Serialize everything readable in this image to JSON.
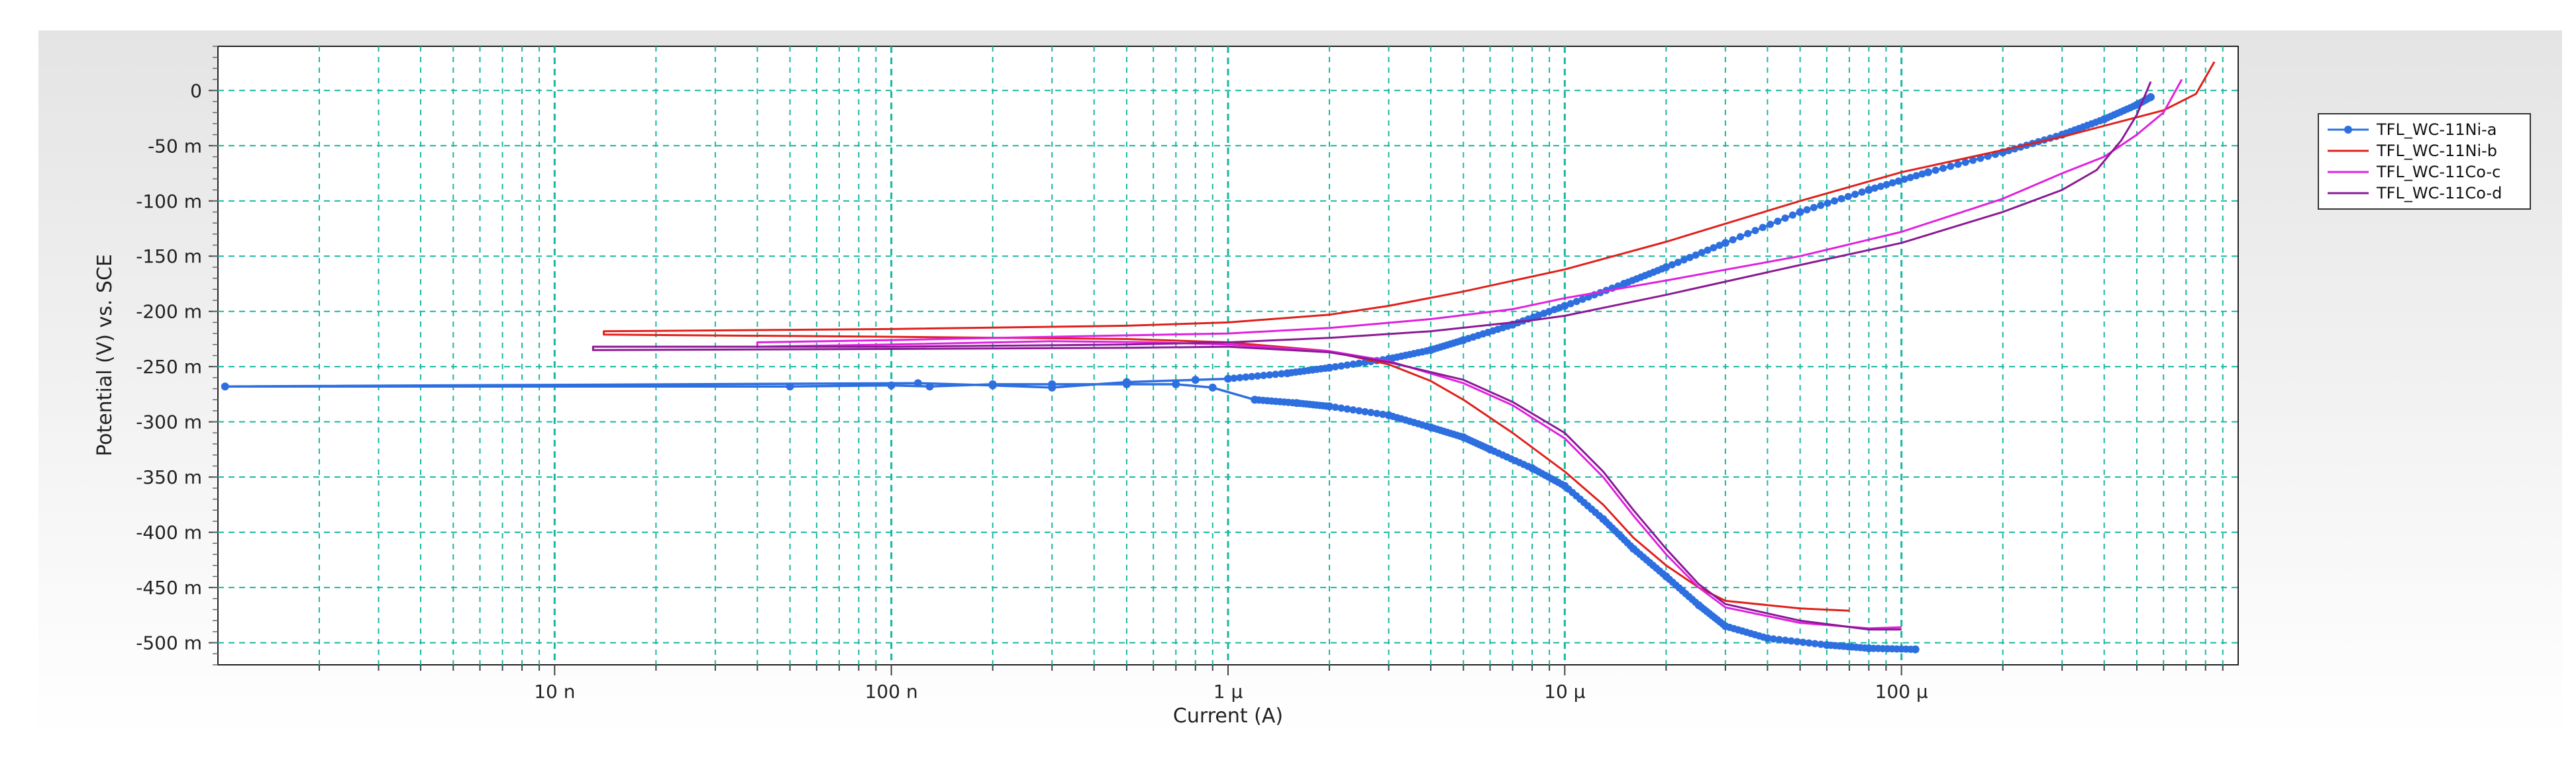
{
  "chart_data": {
    "type": "line",
    "xlabel": "Current (A)",
    "ylabel": "Potential (V) vs. SCE",
    "x_scale": "log",
    "xlim": [
      1e-09,
      0.001
    ],
    "ylim": [
      -0.52,
      0.04
    ],
    "grid": true,
    "legend_position": "right",
    "x_ticks": [
      {
        "value": 1e-08,
        "label": "10 n"
      },
      {
        "value": 1e-07,
        "label": "100 n"
      },
      {
        "value": 1e-06,
        "label": "1 µ"
      },
      {
        "value": 1e-05,
        "label": "10 µ"
      },
      {
        "value": 0.0001,
        "label": "100 µ"
      }
    ],
    "y_ticks": [
      {
        "value": 0,
        "label": "0"
      },
      {
        "value": -0.05,
        "label": "-50 m"
      },
      {
        "value": -0.1,
        "label": "-100 m"
      },
      {
        "value": -0.15,
        "label": "-150 m"
      },
      {
        "value": -0.2,
        "label": "-200 m"
      },
      {
        "value": -0.25,
        "label": "-250 m"
      },
      {
        "value": -0.3,
        "label": "-300 m"
      },
      {
        "value": -0.35,
        "label": "-350 m"
      },
      {
        "value": -0.4,
        "label": "-400 m"
      },
      {
        "value": -0.45,
        "label": "-450 m"
      },
      {
        "value": -0.5,
        "label": "-500 m"
      }
    ],
    "series": [
      {
        "name": "TFL_WC-11Ni-a",
        "color": "#2e6fe0",
        "markers": true,
        "cathodic": [
          [
            1.05e-09,
            -0.268
          ],
          [
            5e-08,
            -0.268
          ],
          [
            1e-07,
            -0.267
          ],
          [
            1.3e-07,
            -0.268
          ],
          [
            2e-07,
            -0.266
          ],
          [
            3e-07,
            -0.266
          ],
          [
            5e-07,
            -0.266
          ],
          [
            7e-07,
            -0.266
          ],
          [
            9e-07,
            -0.269
          ],
          [
            1.2e-06,
            -0.28
          ],
          [
            1.6e-06,
            -0.283
          ],
          [
            2e-06,
            -0.286
          ],
          [
            3e-06,
            -0.294
          ],
          [
            4e-06,
            -0.305
          ],
          [
            5e-06,
            -0.314
          ],
          [
            6e-06,
            -0.325
          ],
          [
            8e-06,
            -0.342
          ],
          [
            1e-05,
            -0.358
          ],
          [
            1.3e-05,
            -0.388
          ],
          [
            1.6e-05,
            -0.415
          ],
          [
            2e-05,
            -0.44
          ],
          [
            2.5e-05,
            -0.466
          ],
          [
            3e-05,
            -0.485
          ],
          [
            4e-05,
            -0.496
          ],
          [
            6e-05,
            -0.502
          ],
          [
            8e-05,
            -0.505
          ],
          [
            0.00011,
            -0.506
          ]
        ],
        "anodic": [
          [
            1.2e-07,
            -0.265
          ],
          [
            2e-07,
            -0.267
          ],
          [
            3e-07,
            -0.269
          ],
          [
            5e-07,
            -0.264
          ],
          [
            8e-07,
            -0.262
          ],
          [
            1e-06,
            -0.261
          ],
          [
            1.5e-06,
            -0.256
          ],
          [
            2e-06,
            -0.251
          ],
          [
            3e-06,
            -0.243
          ],
          [
            4e-06,
            -0.235
          ],
          [
            5e-06,
            -0.226
          ],
          [
            7e-06,
            -0.212
          ],
          [
            1e-05,
            -0.195
          ],
          [
            1.5e-05,
            -0.175
          ],
          [
            2e-05,
            -0.16
          ],
          [
            3e-05,
            -0.138
          ],
          [
            5e-05,
            -0.11
          ],
          [
            8e-05,
            -0.09
          ],
          [
            0.00012,
            -0.074
          ],
          [
            0.0002,
            -0.056
          ],
          [
            0.0003,
            -0.04
          ],
          [
            0.0004,
            -0.026
          ],
          [
            0.0005,
            -0.013
          ],
          [
            0.00055,
            -0.006
          ]
        ]
      },
      {
        "name": "TFL_WC-11Ni-b",
        "color": "#e0201c",
        "markers": false,
        "cathodic": [
          [
            1.4e-08,
            -0.221
          ],
          [
            1e-07,
            -0.223
          ],
          [
            5e-07,
            -0.225
          ],
          [
            1e-06,
            -0.228
          ],
          [
            2e-06,
            -0.236
          ],
          [
            3e-06,
            -0.248
          ],
          [
            4e-06,
            -0.263
          ],
          [
            5e-06,
            -0.28
          ],
          [
            7e-06,
            -0.31
          ],
          [
            1e-05,
            -0.345
          ],
          [
            1.3e-05,
            -0.375
          ],
          [
            1.6e-05,
            -0.405
          ],
          [
            2e-05,
            -0.43
          ],
          [
            2.5e-05,
            -0.45
          ],
          [
            3e-05,
            -0.462
          ],
          [
            5e-05,
            -0.469
          ],
          [
            7e-05,
            -0.471
          ]
        ],
        "anodic": [
          [
            1.4e-08,
            -0.218
          ],
          [
            1e-07,
            -0.216
          ],
          [
            5e-07,
            -0.213
          ],
          [
            1e-06,
            -0.21
          ],
          [
            2e-06,
            -0.203
          ],
          [
            3e-06,
            -0.195
          ],
          [
            5e-06,
            -0.182
          ],
          [
            1e-05,
            -0.162
          ],
          [
            2e-05,
            -0.137
          ],
          [
            5e-05,
            -0.1
          ],
          [
            0.0001,
            -0.074
          ],
          [
            0.0002,
            -0.054
          ],
          [
            0.0003,
            -0.042
          ],
          [
            0.0004,
            -0.032
          ],
          [
            0.0006,
            -0.018
          ],
          [
            0.00075,
            -0.003
          ],
          [
            0.00085,
            0.026
          ]
        ]
      },
      {
        "name": "TFL_WC-11Co-c",
        "color": "#e020e0",
        "markers": false,
        "cathodic": [
          [
            4e-08,
            -0.232
          ],
          [
            1e-07,
            -0.23
          ],
          [
            3e-07,
            -0.227
          ],
          [
            6e-07,
            -0.228
          ],
          [
            1e-06,
            -0.23
          ],
          [
            2e-06,
            -0.236
          ],
          [
            3e-06,
            -0.245
          ],
          [
            5e-06,
            -0.265
          ],
          [
            7e-06,
            -0.285
          ],
          [
            1e-05,
            -0.315
          ],
          [
            1.3e-05,
            -0.35
          ],
          [
            1.6e-05,
            -0.385
          ],
          [
            2e-05,
            -0.42
          ],
          [
            2.5e-05,
            -0.45
          ],
          [
            3e-05,
            -0.468
          ],
          [
            5e-05,
            -0.482
          ],
          [
            8e-05,
            -0.487
          ],
          [
            0.0001,
            -0.486
          ]
        ],
        "anodic": [
          [
            4e-08,
            -0.228
          ],
          [
            1e-07,
            -0.226
          ],
          [
            3e-07,
            -0.223
          ],
          [
            1e-06,
            -0.22
          ],
          [
            2e-06,
            -0.215
          ],
          [
            4e-06,
            -0.207
          ],
          [
            7e-06,
            -0.198
          ],
          [
            1e-05,
            -0.188
          ],
          [
            2e-05,
            -0.172
          ],
          [
            5e-05,
            -0.15
          ],
          [
            0.0001,
            -0.128
          ],
          [
            0.0002,
            -0.098
          ],
          [
            0.0003,
            -0.075
          ],
          [
            0.0004,
            -0.06
          ],
          [
            0.0005,
            -0.04
          ],
          [
            0.0006,
            -0.02
          ],
          [
            0.00068,
            0.01
          ]
        ]
      },
      {
        "name": "TFL_WC-11Co-d",
        "color": "#8a1a94",
        "markers": false,
        "cathodic": [
          [
            1.3e-08,
            -0.235
          ],
          [
            1e-07,
            -0.234
          ],
          [
            5e-07,
            -0.233
          ],
          [
            1e-06,
            -0.232
          ],
          [
            2e-06,
            -0.237
          ],
          [
            3e-06,
            -0.246
          ],
          [
            5e-06,
            -0.262
          ],
          [
            7e-06,
            -0.282
          ],
          [
            1e-05,
            -0.31
          ],
          [
            1.3e-05,
            -0.345
          ],
          [
            1.6e-05,
            -0.38
          ],
          [
            2e-05,
            -0.415
          ],
          [
            2.5e-05,
            -0.447
          ],
          [
            3e-05,
            -0.465
          ],
          [
            5e-05,
            -0.48
          ],
          [
            8e-05,
            -0.488
          ],
          [
            0.0001,
            -0.488
          ]
        ],
        "anodic": [
          [
            1.3e-08,
            -0.232
          ],
          [
            1e-07,
            -0.232
          ],
          [
            5e-07,
            -0.23
          ],
          [
            1e-06,
            -0.228
          ],
          [
            2e-06,
            -0.224
          ],
          [
            4e-06,
            -0.218
          ],
          [
            8e-06,
            -0.208
          ],
          [
            1e-05,
            -0.204
          ],
          [
            2e-05,
            -0.185
          ],
          [
            5e-05,
            -0.158
          ],
          [
            0.0001,
            -0.138
          ],
          [
            0.0002,
            -0.11
          ],
          [
            0.0003,
            -0.09
          ],
          [
            0.00038,
            -0.072
          ],
          [
            0.00045,
            -0.045
          ],
          [
            0.0005,
            -0.022
          ],
          [
            0.00055,
            0.008
          ]
        ]
      }
    ]
  }
}
